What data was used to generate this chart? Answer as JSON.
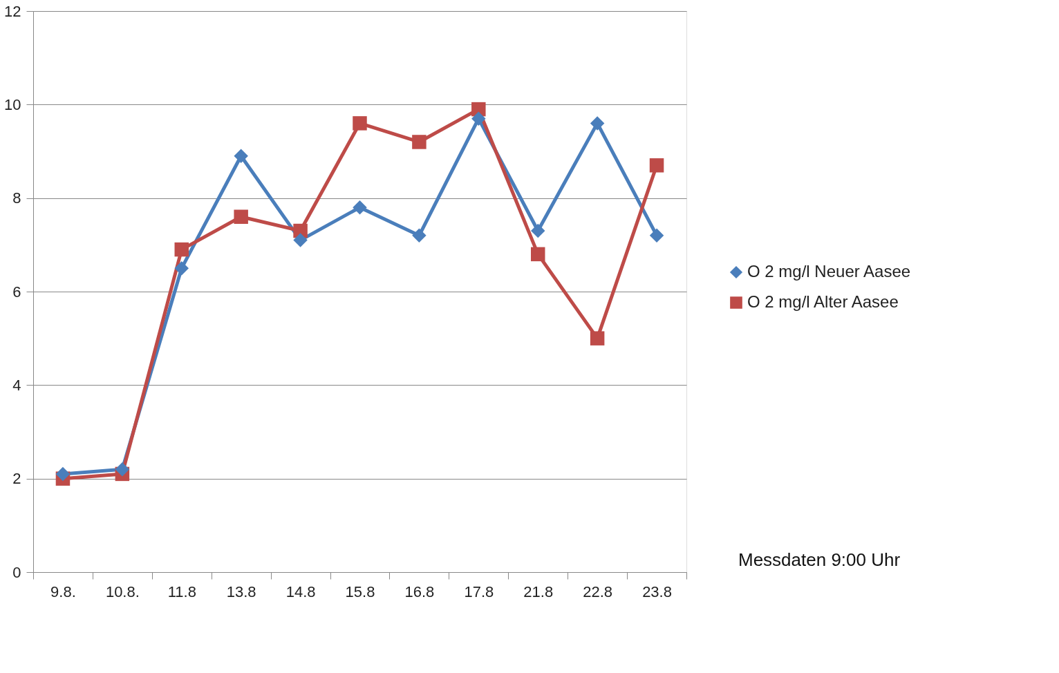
{
  "chart_data": {
    "type": "line",
    "categories": [
      "9.8.",
      "10.8.",
      "11.8",
      "13.8",
      "14.8",
      "15.8",
      "16.8",
      "17.8",
      "21.8",
      "22.8",
      "23.8"
    ],
    "series": [
      {
        "name": "O 2 mg/l Neuer Aasee",
        "color": "#4a7ebb",
        "marker": "diamond",
        "values": [
          2.1,
          2.2,
          6.5,
          8.9,
          7.1,
          7.8,
          7.2,
          9.7,
          7.3,
          9.6,
          7.2
        ]
      },
      {
        "name": "O 2 mg/l Alter Aasee",
        "color": "#be4b48",
        "marker": "square",
        "values": [
          2.0,
          2.1,
          6.9,
          7.6,
          7.3,
          9.6,
          9.2,
          9.9,
          6.8,
          5.0,
          8.7
        ]
      }
    ],
    "ylim": [
      0,
      12
    ],
    "yticks": [
      0,
      2,
      4,
      6,
      8,
      10,
      12
    ],
    "grid": "y",
    "legend": "right",
    "line_style": "solid",
    "annotations": [
      "Messdaten 9:00 Uhr"
    ]
  }
}
